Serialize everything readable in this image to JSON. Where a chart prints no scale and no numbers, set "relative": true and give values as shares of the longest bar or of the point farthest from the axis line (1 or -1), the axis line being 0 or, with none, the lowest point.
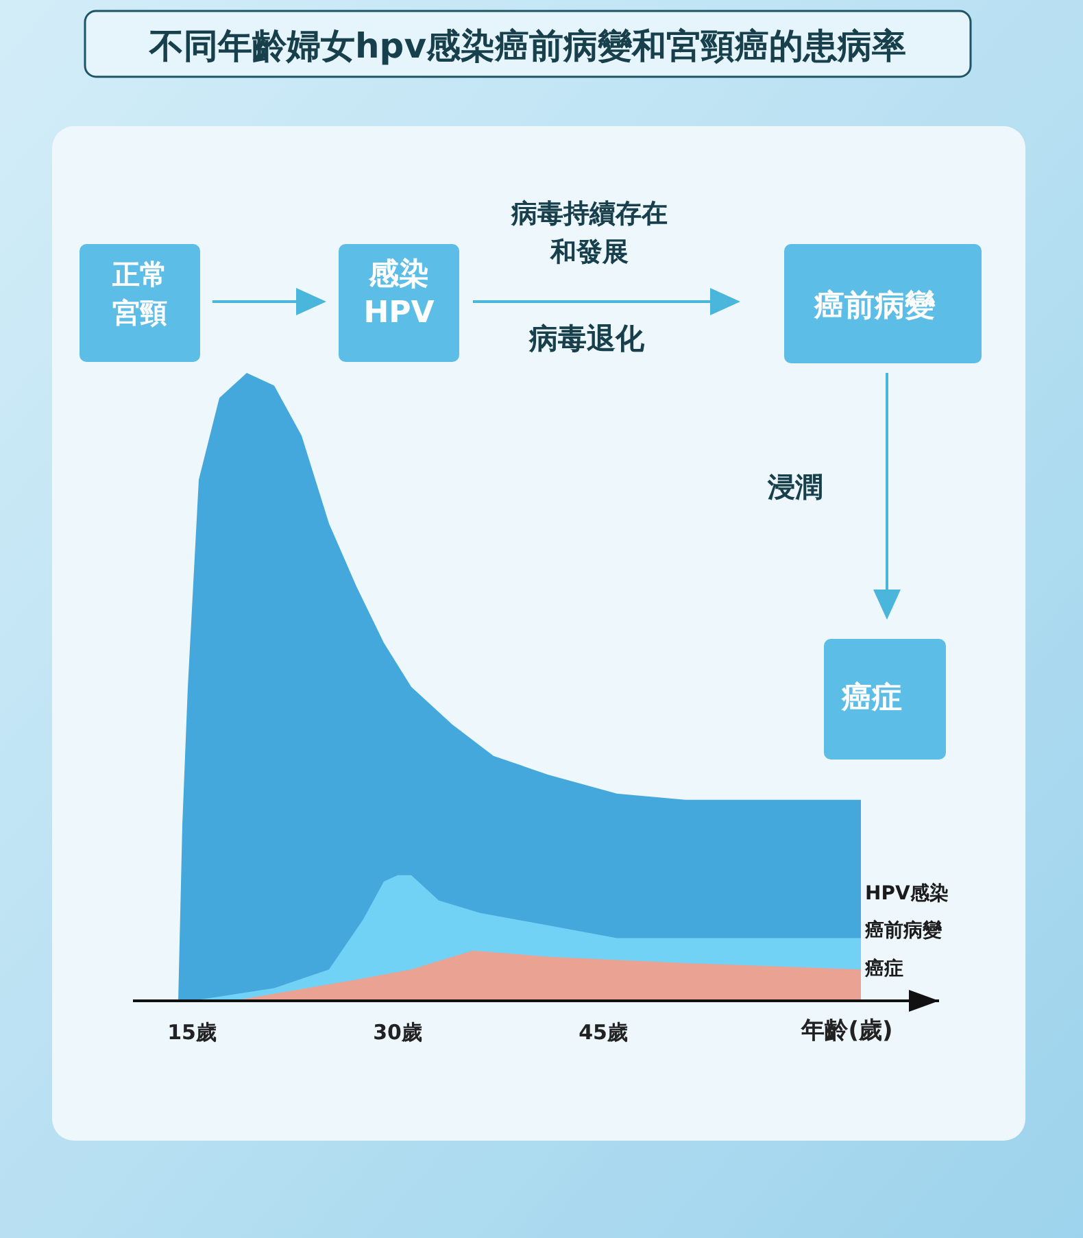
{
  "chart_data": {
    "type": "area",
    "title": "不同年齡婦女hpv感染癌前病變和宮頸癌的患病率",
    "xlabel": "年齡(歲)",
    "relative": true,
    "xlim": [
      10.7,
      69.5
    ],
    "xticks": [
      {
        "value": 15,
        "label": "15歲"
      },
      {
        "value": 30,
        "label": "30歲"
      },
      {
        "value": 45,
        "label": "45歲"
      }
    ],
    "grid": false,
    "legend": false,
    "annotations": [
      "正常宮頸",
      "感染HPV",
      "病毒持續存在和發展",
      "病毒退化",
      "癌前病變",
      "浸潤",
      "癌症"
    ],
    "series": [
      {
        "name": "HPV感染",
        "color": "#45a8dc",
        "x": [
          14.0,
          14.3,
          14.7,
          15.5,
          17.0,
          19.0,
          21.0,
          23.0,
          25.0,
          27.0,
          29.0,
          31.0,
          34.0,
          37.0,
          41.0,
          46.0,
          51.0,
          56.0,
          63.8
        ],
        "values": [
          0,
          0.28,
          0.5,
          0.83,
          0.96,
          1.0,
          0.98,
          0.9,
          0.76,
          0.66,
          0.57,
          0.5,
          0.44,
          0.39,
          0.36,
          0.33,
          0.32,
          0.32,
          0.32
        ]
      },
      {
        "name": "癌前病變",
        "color": "#72d2f6",
        "x": [
          15,
          21,
          25,
          27.5,
          29,
          30,
          31,
          33,
          36,
          41,
          46,
          51,
          63.8
        ],
        "values": [
          0,
          0.02,
          0.05,
          0.13,
          0.19,
          0.2,
          0.2,
          0.16,
          0.14,
          0.12,
          0.1,
          0.1,
          0.1
        ]
      },
      {
        "name": "癌症",
        "color": "#eaa292",
        "x": [
          18,
          26,
          31,
          34,
          35.5,
          41,
          51,
          63.8
        ],
        "values": [
          0,
          0.03,
          0.05,
          0.07,
          0.08,
          0.07,
          0.06,
          0.05
        ]
      }
    ]
  }
}
